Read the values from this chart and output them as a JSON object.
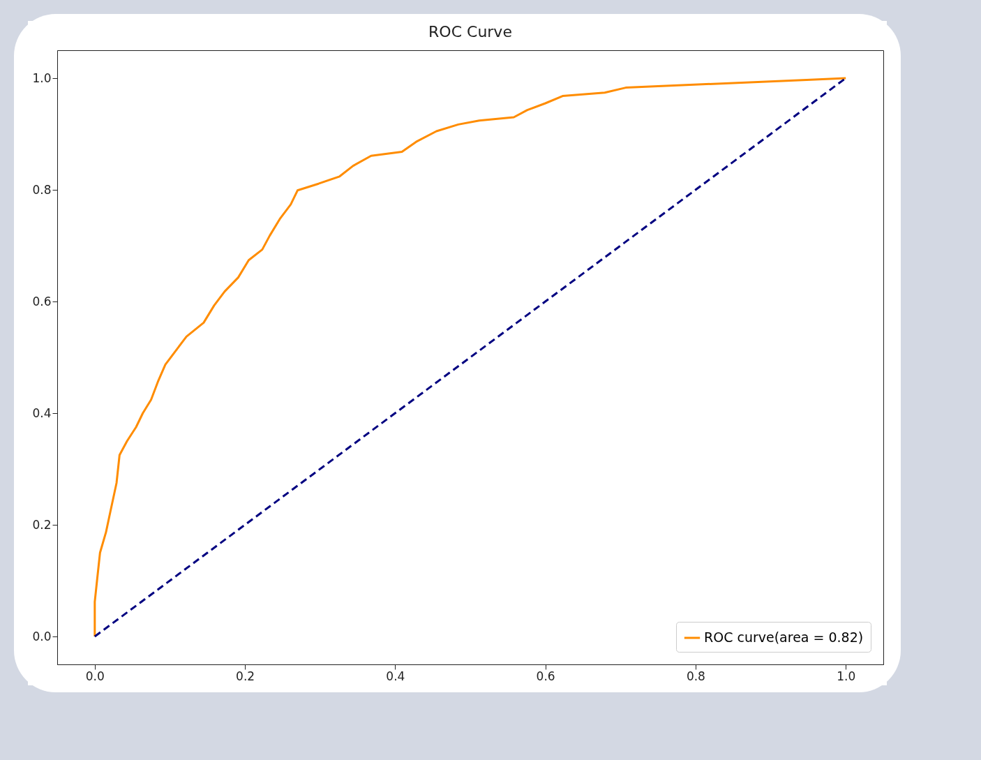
{
  "chart_data": {
    "type": "line",
    "title": "ROC Curve",
    "xlim": [
      -0.05,
      1.05
    ],
    "ylim": [
      -0.05,
      1.05
    ],
    "xticks": [
      {
        "value": 0,
        "label": "0.0"
      },
      {
        "value": 0.2,
        "label": "0.2"
      },
      {
        "value": 0.4,
        "label": "0.4"
      },
      {
        "value": 0.6,
        "label": "0.6"
      },
      {
        "value": 0.8,
        "label": "0.8"
      },
      {
        "value": 1,
        "label": "1.0"
      }
    ],
    "yticks": [
      {
        "value": 0,
        "label": "0.0"
      },
      {
        "value": 0.2,
        "label": "0.2"
      },
      {
        "value": 0.4,
        "label": "0.4"
      },
      {
        "value": 0.6,
        "label": "0.6"
      },
      {
        "value": 0.8,
        "label": "0.8"
      },
      {
        "value": 1,
        "label": "1.0"
      }
    ],
    "grid": false,
    "legend": "bottom right",
    "series": [
      {
        "name": "ROC curve(area = 0.82)",
        "color": "#ff8c00",
        "line_style": "solid",
        "x": [
          0,
          0,
          0.003,
          0.007,
          0.015,
          0.021,
          0.029,
          0.033,
          0.043,
          0.055,
          0.064,
          0.075,
          0.084,
          0.094,
          0.108,
          0.122,
          0.145,
          0.159,
          0.173,
          0.191,
          0.205,
          0.223,
          0.233,
          0.247,
          0.261,
          0.27,
          0.298,
          0.326,
          0.344,
          0.368,
          0.409,
          0.428,
          0.455,
          0.484,
          0.512,
          0.558,
          0.576,
          0.6,
          0.623,
          0.679,
          0.707,
          0.809,
          0.883,
          0.948,
          1
        ],
        "values": [
          0,
          0.062,
          0.1,
          0.15,
          0.187,
          0.225,
          0.275,
          0.325,
          0.35,
          0.375,
          0.4,
          0.424,
          0.456,
          0.487,
          0.512,
          0.537,
          0.562,
          0.593,
          0.618,
          0.643,
          0.674,
          0.693,
          0.718,
          0.749,
          0.774,
          0.799,
          0.811,
          0.824,
          0.843,
          0.861,
          0.868,
          0.886,
          0.905,
          0.917,
          0.924,
          0.93,
          0.943,
          0.955,
          0.968,
          0.974,
          0.983,
          0.989,
          0.993,
          0.997,
          1
        ]
      },
      {
        "color": "#000080",
        "line_style": "dashed",
        "x": [
          0,
          1
        ],
        "values": [
          0,
          1
        ]
      }
    ]
  }
}
